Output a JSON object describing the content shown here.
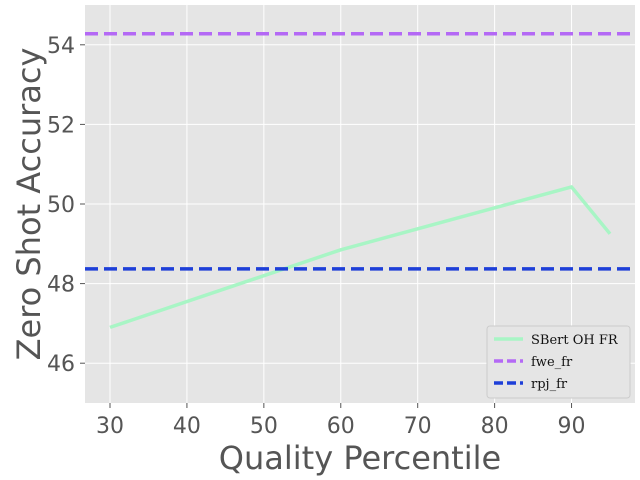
{
  "chart_data": {
    "type": "line",
    "xlabel": "Quality Percentile",
    "ylabel": "Zero Shot Accuracy",
    "xlim": [
      26.75,
      98.25
    ],
    "ylim": [
      45.0,
      55.0
    ],
    "xticks": [
      30,
      40,
      50,
      60,
      70,
      80,
      90
    ],
    "yticks": [
      46,
      48,
      50,
      52,
      54
    ],
    "grid": true,
    "legend_position": "bottom-right",
    "series": [
      {
        "name": "SBert OH FR",
        "style": "solid",
        "color": "#a8f5c5",
        "x": [
          30,
          60,
          90,
          95
        ],
        "y": [
          46.9,
          48.85,
          50.43,
          49.25
        ]
      },
      {
        "name": "fwe_fr",
        "style": "dashed-horizontal",
        "color": "#b469f5",
        "x": [
          26.75,
          98.25
        ],
        "y": [
          54.28,
          54.28
        ]
      },
      {
        "name": "rpj_fr",
        "style": "dashed-horizontal",
        "color": "#1e3fd8",
        "x": [
          26.75,
          98.25
        ],
        "y": [
          48.37,
          48.37
        ]
      }
    ]
  }
}
